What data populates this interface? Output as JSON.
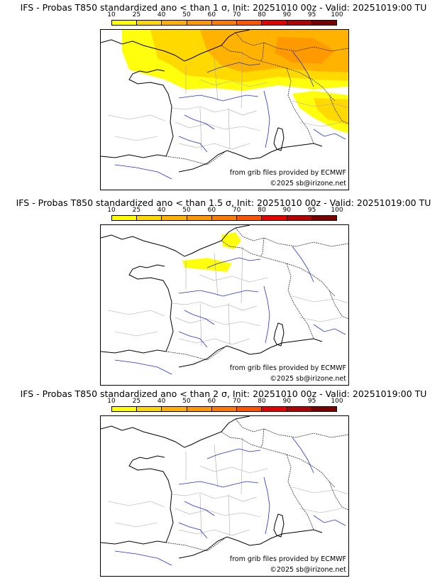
{
  "colorbar": {
    "ticks": [
      "10",
      "25",
      "40",
      "50",
      "60",
      "70",
      "80",
      "90",
      "95",
      "100"
    ],
    "colors": [
      "#ffff00",
      "#ffd700",
      "#ffb000",
      "#ff9800",
      "#ff7b00",
      "#ff5500",
      "#e60000",
      "#b40000",
      "#7d0000"
    ]
  },
  "panels": [
    {
      "title": "IFS - Probas T850  standardized ano < than 1 σ, Init: 20251010 00z - Valid: 20251019:00 TU",
      "credit_source": "from grib files provided by ECMWF",
      "credit_copyright": "©2025 sb@irizone.net",
      "coverage": "wide"
    },
    {
      "title": "IFS - Probas T850  standardized ano < than 1.5 σ, Init: 20251010 00z - Valid: 20251019:00 TU",
      "credit_source": "from grib files provided by ECMWF",
      "credit_copyright": "©2025 sb@irizone.net",
      "coverage": "small"
    },
    {
      "title": "IFS - Probas T850  standardized ano < than 2 σ, Init: 20251010 00z - Valid: 20251019:00 TU",
      "credit_source": "from grib files provided by ECMWF",
      "credit_copyright": "©2025 sb@irizone.net",
      "coverage": "none"
    }
  ]
}
